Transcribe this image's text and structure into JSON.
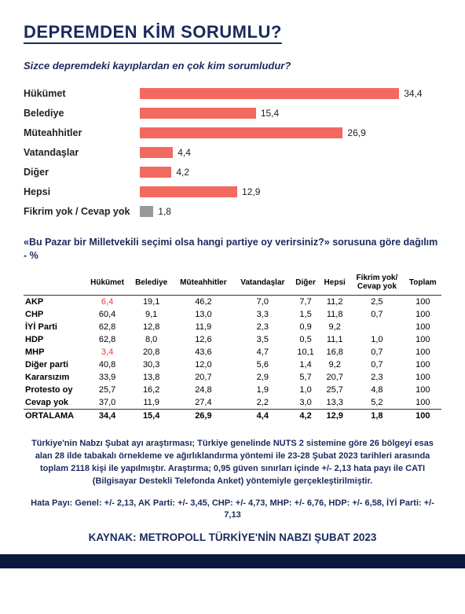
{
  "title": "DEPREMDEN KİM SORUMLU?",
  "subtitle": "Sizce depremdeki kayıplardan en çok kim sorumludur?",
  "colors": {
    "brand": "#1a2a5c",
    "bar": "#f26a5f",
    "bar_gray": "#999999",
    "footer": "#0d1840",
    "highlight": "#e33333"
  },
  "chart": {
    "max": 40,
    "items": [
      {
        "label": "Hükümet",
        "value": "34,4",
        "pct": 86.0,
        "gray": false
      },
      {
        "label": "Belediye",
        "value": "15,4",
        "pct": 38.5,
        "gray": false
      },
      {
        "label": "Müteahhitler",
        "value": "26,9",
        "pct": 67.3,
        "gray": false
      },
      {
        "label": "Vatandaşlar",
        "value": "4,4",
        "pct": 11.0,
        "gray": false
      },
      {
        "label": "Diğer",
        "value": "4,2",
        "pct": 10.5,
        "gray": false
      },
      {
        "label": "Hepsi",
        "value": "12,9",
        "pct": 32.3,
        "gray": false
      },
      {
        "label": "Fikrim yok / Cevap yok",
        "value": "1,8",
        "pct": 4.5,
        "gray": true
      }
    ]
  },
  "table_title": "«Bu Pazar bir Milletvekili seçimi olsa hangi partiye oy verirsiniz?» sorusuna göre dağılım - %",
  "table": {
    "columns": [
      "",
      "Hükümet",
      "Belediye",
      "Müteahhitler",
      "Vatandaşlar",
      "Diğer",
      "Hepsi",
      "Fikrim yok/\nCevap yok",
      "Toplam"
    ],
    "rows": [
      {
        "head": "AKP",
        "cells": [
          "6,4",
          "19,1",
          "46,2",
          "7,0",
          "7,7",
          "11,2",
          "2,5",
          "100"
        ],
        "highlight_idx": 0
      },
      {
        "head": "CHP",
        "cells": [
          "60,4",
          "9,1",
          "13,0",
          "3,3",
          "1,5",
          "11,8",
          "0,7",
          "100"
        ]
      },
      {
        "head": "İYİ Parti",
        "cells": [
          "62,8",
          "12,8",
          "11,9",
          "2,3",
          "0,9",
          "9,2",
          "",
          "100"
        ]
      },
      {
        "head": "HDP",
        "cells": [
          "62,8",
          "8,0",
          "12,6",
          "3,5",
          "0,5",
          "11,1",
          "1,0",
          "100"
        ]
      },
      {
        "head": "MHP",
        "cells": [
          "3,4",
          "20,8",
          "43,6",
          "4,7",
          "10,1",
          "16,8",
          "0,7",
          "100"
        ],
        "highlight_idx": 0
      },
      {
        "head": "Diğer parti",
        "cells": [
          "40,8",
          "30,3",
          "12,0",
          "5,6",
          "1,4",
          "9,2",
          "0,7",
          "100"
        ]
      },
      {
        "head": "Kararsızım",
        "cells": [
          "33,9",
          "13,8",
          "20,7",
          "2,9",
          "5,7",
          "20,7",
          "2,3",
          "100"
        ]
      },
      {
        "head": "Protesto oy",
        "cells": [
          "25,7",
          "16,2",
          "24,8",
          "1,9",
          "1,0",
          "25,7",
          "4,8",
          "100"
        ]
      },
      {
        "head": "Cevap yok",
        "cells": [
          "37,0",
          "11,9",
          "27,4",
          "2,2",
          "3,0",
          "13,3",
          "5,2",
          "100"
        ]
      },
      {
        "head": "ORTALAMA",
        "cells": [
          "34,4",
          "15,4",
          "26,9",
          "4,4",
          "4,2",
          "12,9",
          "1,8",
          "100"
        ],
        "bold": true
      }
    ]
  },
  "footnote1": "Türkiye'nin Nabzı Şubat ayı araştırması; Türkiye genelinde NUTS 2 sistemine göre 26 bölgeyi esas alan 28 ilde tabakalı örnekleme ve ağırlıklandırma yöntemi ile 23-28 Şubat 2023 tarihleri arasında toplam 2118 kişi ile yapılmıştır. Araştırma; 0,95 güven sınırları içinde +/- 2,13 hata payı ile CATI (Bilgisayar Destekli Telefonda Anket) yöntemiyle gerçekleştirilmiştir.",
  "footnote2": "Hata Payı: Genel: +/- 2,13, AK Parti: +/- 3,45, CHP: +/- 4,73, MHP: +/- 6,76, HDP: +/- 6,58, İYİ Parti: +/- 7,13",
  "source": "KAYNAK: METROPOLL TÜRKİYE'NİN NABZI ŞUBAT 2023"
}
